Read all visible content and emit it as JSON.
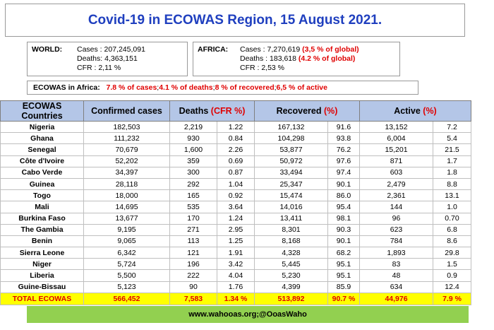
{
  "title": "Covid-19 in ECOWAS Region, 15 August 2021.",
  "world": {
    "label": "WORLD:",
    "cases": "Cases : 207,245,091",
    "deaths": "Deaths: 4,363,151",
    "cfr": "CFR : 2,11 %"
  },
  "africa": {
    "label": "AFRICA:",
    "cases": "Cases : 7,270,619",
    "cases_pct": "(3,5 % of global)",
    "deaths": "Deaths : 183,618",
    "deaths_pct": "(4.2 % of global)",
    "cfr": "CFR : 2,53 %"
  },
  "summary": {
    "label": "ECOWAS in Africa:",
    "p1": "7.8 % of cases",
    "s1": "; ",
    "p2": "4.1 % of deaths",
    "s2": "; ",
    "p3": "8 % of recovered",
    "s3": "; ",
    "p4": "6,5 % of active"
  },
  "table": {
    "headers": {
      "country": "ECOWAS Countries",
      "confirmed": "Confirmed cases",
      "deaths": "Deaths",
      "deaths_pct": "(CFR %)",
      "recovered": "Recovered",
      "recovered_pct": "(%)",
      "active": "Active",
      "active_pct": "(%)"
    },
    "rows": [
      {
        "country": "Nigeria",
        "confirmed": "182,503",
        "deaths": "2,219",
        "cfr": "1.22",
        "recovered": "167,132",
        "rec_pct": "91.6",
        "active": "13,152",
        "act_pct": "7.2"
      },
      {
        "country": "Ghana",
        "confirmed": "111,232",
        "deaths": "930",
        "cfr": "0.84",
        "recovered": "104,298",
        "rec_pct": "93.8",
        "active": "6,004",
        "act_pct": "5.4"
      },
      {
        "country": "Senegal",
        "confirmed": "70,679",
        "deaths": "1,600",
        "cfr": "2.26",
        "recovered": "53,877",
        "rec_pct": "76.2",
        "active": "15,201",
        "act_pct": "21.5"
      },
      {
        "country": "Côte d'Ivoire",
        "confirmed": "52,202",
        "deaths": "359",
        "cfr": "0.69",
        "recovered": "50,972",
        "rec_pct": "97.6",
        "active": "871",
        "act_pct": "1.7"
      },
      {
        "country": "Cabo Verde",
        "confirmed": "34,397",
        "deaths": "300",
        "cfr": "0.87",
        "recovered": "33,494",
        "rec_pct": "97.4",
        "active": "603",
        "act_pct": "1.8"
      },
      {
        "country": "Guinea",
        "confirmed": "28,118",
        "deaths": "292",
        "cfr": "1.04",
        "recovered": "25,347",
        "rec_pct": "90.1",
        "active": "2,479",
        "act_pct": "8.8"
      },
      {
        "country": "Togo",
        "confirmed": "18,000",
        "deaths": "165",
        "cfr": "0.92",
        "recovered": "15,474",
        "rec_pct": "86.0",
        "active": "2,361",
        "act_pct": "13.1"
      },
      {
        "country": "Mali",
        "confirmed": "14,695",
        "deaths": "535",
        "cfr": "3.64",
        "recovered": "14,016",
        "rec_pct": "95.4",
        "active": "144",
        "act_pct": "1.0"
      },
      {
        "country": "Burkina Faso",
        "confirmed": "13,677",
        "deaths": "170",
        "cfr": "1.24",
        "recovered": "13,411",
        "rec_pct": "98.1",
        "active": "96",
        "act_pct": "0.70"
      },
      {
        "country": "The Gambia",
        "confirmed": "9,195",
        "deaths": "271",
        "cfr": "2.95",
        "recovered": "8,301",
        "rec_pct": "90.3",
        "active": "623",
        "act_pct": "6.8"
      },
      {
        "country": "Benin",
        "confirmed": "9,065",
        "deaths": "113",
        "cfr": "1.25",
        "recovered": "8,168",
        "rec_pct": "90.1",
        "active": "784",
        "act_pct": "8.6"
      },
      {
        "country": "Sierra Leone",
        "confirmed": "6,342",
        "deaths": "121",
        "cfr": "1.91",
        "recovered": "4,328",
        "rec_pct": "68.2",
        "active": "1,893",
        "act_pct": "29.8"
      },
      {
        "country": "Niger",
        "confirmed": "5,724",
        "deaths": "196",
        "cfr": "3.42",
        "recovered": "5,445",
        "rec_pct": "95.1",
        "active": "83",
        "act_pct": "1.5"
      },
      {
        "country": "Liberia",
        "confirmed": "5,500",
        "deaths": "222",
        "cfr": "4.04",
        "recovered": "5,230",
        "rec_pct": "95.1",
        "active": "48",
        "act_pct": "0.9"
      },
      {
        "country": "Guine-Bissau",
        "confirmed": "5,123",
        "deaths": "90",
        "cfr": "1.76",
        "recovered": "4,399",
        "rec_pct": "85.9",
        "active": "634",
        "act_pct": "12.4"
      }
    ],
    "total": {
      "country": "TOTAL ECOWAS",
      "confirmed": "566,452",
      "deaths": "7,583",
      "cfr": "1.34 %",
      "recovered": "513,892",
      "rec_pct": "90.7 %",
      "active": "44,976",
      "act_pct": "7.9 %"
    }
  },
  "footer": {
    "website": "www.wahooas.org",
    "sep": "; ",
    "handle": "@OoasWaho"
  }
}
